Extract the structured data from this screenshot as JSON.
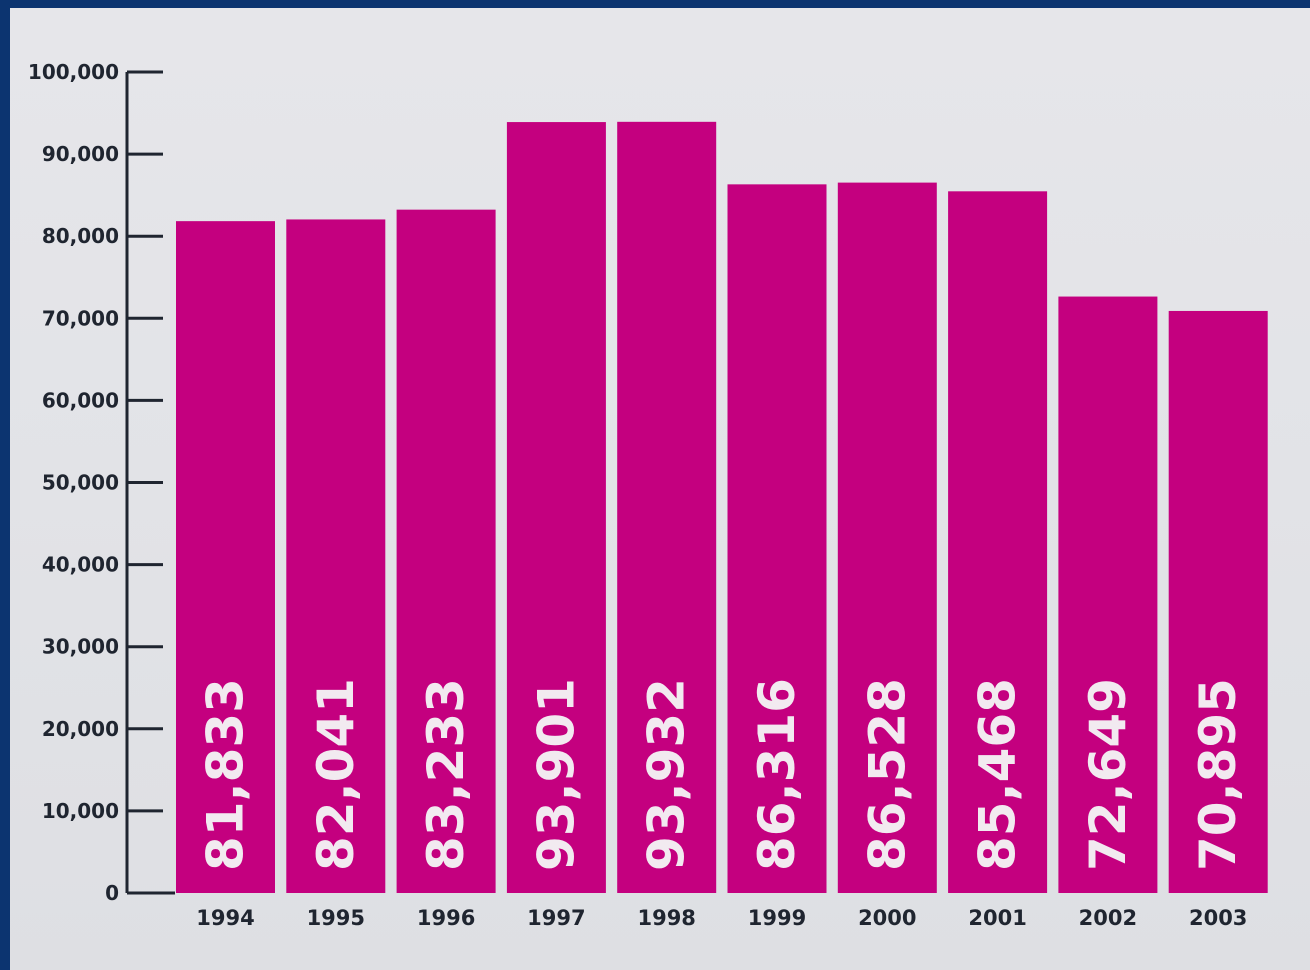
{
  "chart_data": {
    "type": "bar",
    "categories": [
      "1994",
      "1995",
      "1996",
      "1997",
      "1998",
      "1999",
      "2000",
      "2001",
      "2002",
      "2003"
    ],
    "values": [
      81833,
      82041,
      83233,
      93901,
      93932,
      86316,
      86528,
      85468,
      72649,
      70895
    ],
    "data_labels": [
      "81,833",
      "82,041",
      "83,233",
      "93,901",
      "93,932",
      "86,316",
      "86,528",
      "85,468",
      "72,649",
      "70,895"
    ],
    "ylim": [
      0,
      100000
    ],
    "yticks": [
      0,
      10000,
      20000,
      30000,
      40000,
      50000,
      60000,
      70000,
      80000,
      90000,
      100000
    ],
    "ytick_labels": [
      "0",
      "10,000",
      "20,000",
      "30,000",
      "40,000",
      "50,000",
      "60,000",
      "70,000",
      "80,000",
      "90,000",
      "100,000"
    ],
    "title": "",
    "xlabel": "",
    "ylabel": "",
    "grid": false,
    "legend": "none",
    "bar_color": "#c4007f",
    "label_color": "#f2eaf0",
    "background_color": "#e4e4e8",
    "frame_color": "#0c3470"
  }
}
